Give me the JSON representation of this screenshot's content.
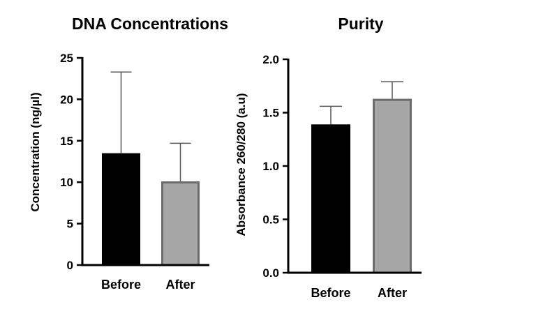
{
  "chart_data": [
    {
      "type": "bar",
      "title": "DNA Concentrations",
      "ylabel": "Concentration (ng/µl)",
      "xlabel": "",
      "categories": [
        "Before",
        "After"
      ],
      "values": [
        13.5,
        10.1
      ],
      "error_upper": [
        23.3,
        14.7
      ],
      "ylim": [
        0,
        25
      ],
      "yticks": [
        "0",
        "5",
        "10",
        "15",
        "20",
        "25"
      ],
      "ytick_values": [
        0,
        5,
        10,
        15,
        20,
        25
      ],
      "bar_colors": [
        "#000000",
        "#a6a6a6"
      ],
      "bar_edge_colors": [
        "#000000",
        "#6b6b6b"
      ],
      "grid": false
    },
    {
      "type": "bar",
      "title": "Purity",
      "ylabel": "Absorbance 260/280 (a.u)",
      "xlabel": "",
      "categories": [
        "Before",
        "After"
      ],
      "values": [
        1.39,
        1.63
      ],
      "error_upper": [
        1.56,
        1.79
      ],
      "ylim": [
        0,
        2.0
      ],
      "yticks": [
        "0.0",
        "0.5",
        "1.0",
        "1.5",
        "2.0"
      ],
      "ytick_values": [
        0,
        0.5,
        1.0,
        1.5,
        2.0
      ],
      "bar_colors": [
        "#000000",
        "#a6a6a6"
      ],
      "bar_edge_colors": [
        "#000000",
        "#6b6b6b"
      ],
      "grid": false
    }
  ]
}
